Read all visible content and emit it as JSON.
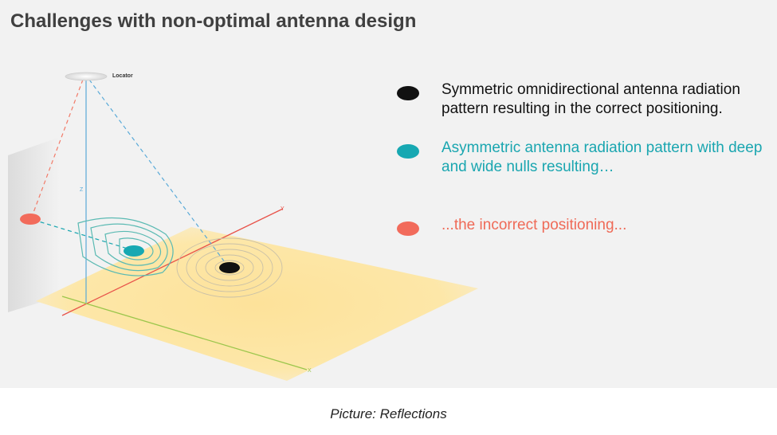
{
  "title": "Challenges with non-optimal antenna design",
  "diagram": {
    "locator_label": "Locator",
    "axis_z": "Z",
    "axis_y": "Y",
    "axis_x": "X"
  },
  "legend": [
    {
      "text": "Symmetric omnidirectional antenna radiation pattern resulting in the correct positioning.",
      "color": "#111111",
      "text_color": "#111111"
    },
    {
      "text": "Asymmetric antenna radiation pattern with deep and wide nulls resulting…",
      "color": "#17a8b2",
      "text_color": "#1aa6b0"
    },
    {
      "text": "...the incorrect positioning...",
      "color": "#f26b5b",
      "text_color": "#ef6a57"
    }
  ],
  "caption": "Picture: Reflections"
}
